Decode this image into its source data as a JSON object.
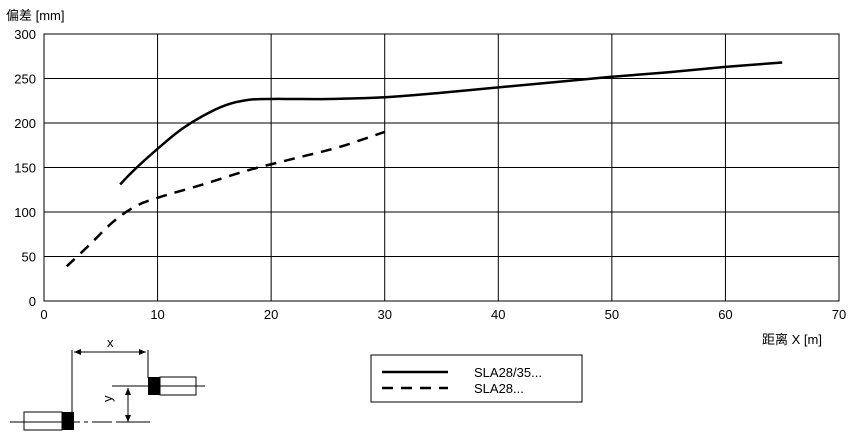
{
  "chart_data": {
    "type": "line",
    "ylabel": "偏差 [mm]",
    "xlabel": "距离 X [m]",
    "xlim": [
      0,
      70
    ],
    "ylim": [
      0,
      300
    ],
    "x_ticks": [
      0,
      10,
      20,
      30,
      40,
      50,
      60,
      70
    ],
    "y_ticks": [
      0,
      50,
      100,
      150,
      200,
      250,
      300
    ],
    "grid": true,
    "legend_position": "bottom-center",
    "series": [
      {
        "name": "SLA28/35...",
        "style": "solid",
        "x": [
          6.7,
          8,
          10,
          12,
          14,
          16,
          18,
          20,
          22,
          25,
          30,
          35,
          40,
          45,
          50,
          55,
          60,
          65
        ],
        "y": [
          131,
          148,
          171,
          192,
          208,
          220,
          226,
          227,
          227,
          227,
          229,
          234,
          240,
          246,
          252,
          257,
          263,
          268
        ]
      },
      {
        "name": "SLA28...",
        "style": "dashed",
        "x": [
          2,
          4,
          6,
          8,
          10,
          14,
          18,
          22,
          26,
          30
        ],
        "y": [
          39,
          63,
          88,
          106,
          116,
          131,
          147,
          160,
          173,
          190
        ]
      }
    ],
    "diagram_labels": {
      "x_label": "x",
      "y_label": "y"
    }
  },
  "colors": {
    "line": "#000000",
    "grid": "#000000",
    "background": "#ffffff"
  }
}
